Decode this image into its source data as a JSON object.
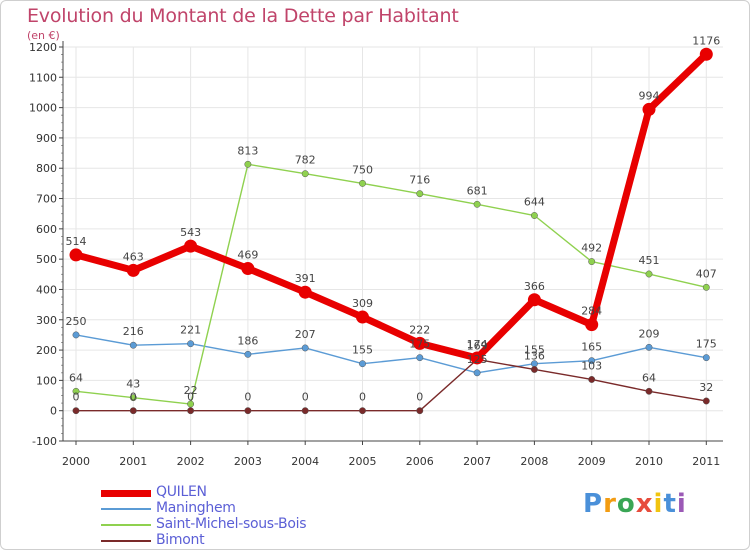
{
  "header": {
    "title": "Evolution du Montant de la Dette par Habitant",
    "subtitle": "(en €)"
  },
  "logo": {
    "text": "Proxiti",
    "colors": [
      "#4a90d9",
      "#f39c12",
      "#3aa655",
      "#e74c3c",
      "#f1c40f",
      "#4a90d9",
      "#9b59b6"
    ]
  },
  "chart_data": {
    "type": "line",
    "x": [
      "2000",
      "2001",
      "2002",
      "2003",
      "2004",
      "2005",
      "2006",
      "2007",
      "2008",
      "2009",
      "2010",
      "2011"
    ],
    "ylim": [
      -100,
      1200
    ],
    "yticks": [
      "-100",
      "0",
      "100",
      "200",
      "300",
      "400",
      "500",
      "600",
      "700",
      "800",
      "900",
      "1000",
      "1100",
      "1200"
    ],
    "ytick_values": [
      -100,
      0,
      100,
      200,
      300,
      400,
      500,
      600,
      700,
      800,
      900,
      1000,
      1100,
      1200
    ],
    "grid": true,
    "legend_position": "bottom-left",
    "series": [
      {
        "name": "QUILEN",
        "color": "#e80000",
        "line_width": "thick",
        "values": [
          514,
          463,
          543,
          469,
          391,
          309,
          222,
          174,
          366,
          284,
          994,
          1176
        ],
        "labels": [
          "514",
          "463",
          "543",
          "469",
          "391",
          "309",
          "222",
          "174",
          "366",
          "284",
          "994",
          "1176"
        ]
      },
      {
        "name": "Maninghem",
        "color": "#5b9bd5",
        "line_width": "thin",
        "values": [
          250,
          216,
          221,
          186,
          207,
          155,
          175,
          125,
          155,
          165,
          209,
          175
        ],
        "labels": [
          "250",
          "216",
          "221",
          "186",
          "207",
          "155",
          "175",
          "125",
          "155",
          "165",
          "209",
          "175"
        ]
      },
      {
        "name": "Saint-Michel-sous-Bois",
        "color": "#8fd14f",
        "line_width": "thin",
        "values": [
          64,
          43,
          22,
          813,
          782,
          750,
          716,
          681,
          644,
          492,
          451,
          407
        ],
        "labels": [
          "64",
          "43",
          "22",
          "813",
          "782",
          "750",
          "716",
          "681",
          "644",
          "492",
          "451",
          "407"
        ]
      },
      {
        "name": "Bimont",
        "color": "#7a2a2a",
        "line_width": "thin",
        "values": [
          0,
          0,
          0,
          0,
          0,
          0,
          0,
          169,
          136,
          103,
          64,
          32
        ],
        "labels": [
          "0",
          "0",
          "0",
          "0",
          "0",
          "0",
          "0",
          "169",
          "136",
          "103",
          "64",
          "32"
        ]
      }
    ]
  }
}
